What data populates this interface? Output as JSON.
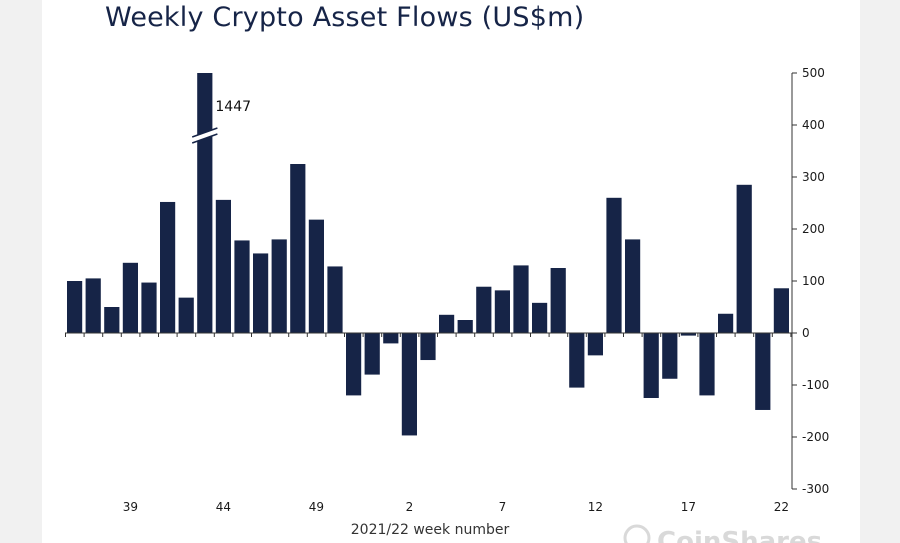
{
  "chart_data": {
    "type": "bar",
    "title": "Weekly Crypto Asset Flows (US$m)",
    "xlabel": "2021/22 week number",
    "ylabel": "",
    "ylim": [
      -300,
      500
    ],
    "yticks": [
      500,
      400,
      300,
      200,
      100,
      0,
      -100,
      -200,
      -300
    ],
    "x_tick_labels": [
      "39",
      "44",
      "49",
      "2",
      "7",
      "12",
      "17",
      "22"
    ],
    "x_tick_indices": [
      3,
      8,
      13,
      18,
      23,
      28,
      33,
      38
    ],
    "values": [
      100,
      105,
      50,
      135,
      97,
      252,
      68,
      1447,
      256,
      178,
      153,
      180,
      325,
      218,
      128,
      -120,
      -80,
      -20,
      -197,
      -52,
      35,
      25,
      89,
      82,
      130,
      58,
      125,
      -105,
      -43,
      260,
      180,
      -125,
      -88,
      -5,
      -120,
      37,
      285,
      -148,
      86
    ],
    "axis_break": {
      "index": 7,
      "label": "1447"
    },
    "bar_color": "#162447"
  },
  "watermark": "CoinShares"
}
